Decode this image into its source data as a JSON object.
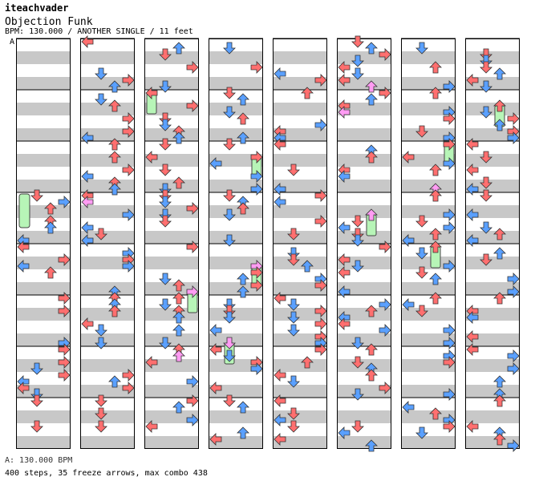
{
  "header": {
    "author": "iteachvader",
    "song_title": "Objection Funk",
    "meta_line": "BPM: 130.000 / ANOTHER SINGLE / 11 feet"
  },
  "segment_label": "A",
  "footer": {
    "bpm_line": "A: 130.000 BPM",
    "stats_line": "400 steps, 35 freeze arrows, max combo 438"
  },
  "colors": {
    "stripe_gray": "#c8c8c8",
    "quarter_red": "#ff6f6f",
    "eighth_blue": "#5aa0ff",
    "sixteenth_pink": "#ff9cf3",
    "freeze_green": "#b7f5b7"
  },
  "chart_data": {
    "type": "step_chart",
    "columns": 8,
    "measures_per_column": 8,
    "lanes": [
      "left",
      "down",
      "up",
      "right"
    ],
    "total_steps": 400,
    "freeze_arrows": 35,
    "max_combo": 438
  }
}
